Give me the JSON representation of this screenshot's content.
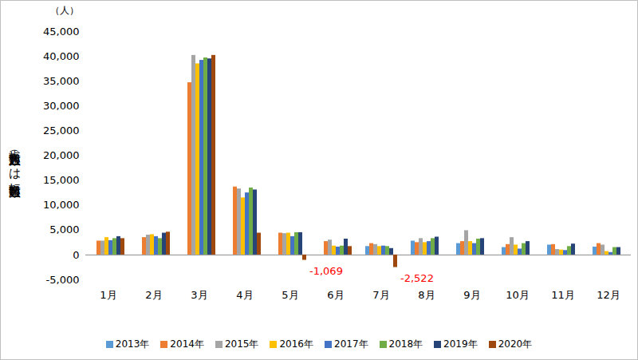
{
  "chart_data": {
    "type": "bar",
    "y_label": "転入超過数（－は転出超過数）",
    "y_unit": "（人）",
    "categories": [
      "1月",
      "2月",
      "3月",
      "4月",
      "5月",
      "6月",
      "7月",
      "8月",
      "9月",
      "10月",
      "11月",
      "12月"
    ],
    "series": [
      {
        "name": "2013年",
        "color": "#5b9bd5",
        "values": [
          null,
          null,
          null,
          null,
          null,
          null,
          1700,
          2800,
          2300,
          1500,
          2000,
          1600
        ]
      },
      {
        "name": "2014年",
        "color": "#ed7d31",
        "values": [
          2800,
          3500,
          34700,
          13700,
          4400,
          2700,
          2300,
          2500,
          2700,
          2100,
          2100,
          2300
        ]
      },
      {
        "name": "2015年",
        "color": "#a5a5a5",
        "values": [
          2800,
          4000,
          40200,
          13300,
          4300,
          3000,
          2100,
          3300,
          4900,
          3500,
          1100,
          2000
        ]
      },
      {
        "name": "2016年",
        "color": "#ffc000",
        "values": [
          3500,
          4100,
          38500,
          11500,
          4400,
          1800,
          1700,
          2500,
          2700,
          2000,
          1000,
          700
        ]
      },
      {
        "name": "2017年",
        "color": "#4472c4",
        "values": [
          2900,
          3700,
          39200,
          12500,
          3700,
          1600,
          1800,
          2700,
          2300,
          1200,
          900,
          500
        ]
      },
      {
        "name": "2018年",
        "color": "#70ad47",
        "values": [
          3300,
          3300,
          39700,
          13500,
          4500,
          1800,
          1700,
          3300,
          3200,
          2300,
          1700,
          1500
        ]
      },
      {
        "name": "2019年",
        "color": "#264478",
        "values": [
          3700,
          4400,
          39500,
          13100,
          4500,
          3200,
          1300,
          3600,
          3300,
          2700,
          2200,
          1500
        ]
      },
      {
        "name": "2020年",
        "color": "#9e480e",
        "values": [
          3300,
          4600,
          40200,
          4400,
          -1069,
          1700,
          -2522,
          null,
          null,
          null,
          null,
          null
        ]
      }
    ],
    "annotations": [
      {
        "category": "5月",
        "series": "2020年",
        "value": -1069,
        "text": "-1,069",
        "color": "#ff0000"
      },
      {
        "category": "7月",
        "series": "2020年",
        "value": -2522,
        "text": "-2,522",
        "color": "#ff0000"
      }
    ],
    "ylim": [
      -5000,
      45000
    ],
    "yticks": [
      {
        "value": -5000,
        "label": "-5,000"
      },
      0,
      {
        "value": 5000,
        "label": "5,000"
      },
      {
        "value": 10000,
        "label": "10,000"
      },
      {
        "value": 15000,
        "label": "15,000"
      },
      {
        "value": 20000,
        "label": "20,000"
      },
      {
        "value": 25000,
        "label": "25,000"
      },
      {
        "value": 30000,
        "label": "30,000"
      },
      {
        "value": 35000,
        "label": "35,000"
      },
      {
        "value": 40000,
        "label": "40,000"
      },
      {
        "value": 45000,
        "label": "45,000"
      }
    ],
    "grid": false,
    "legend": "bottom"
  }
}
